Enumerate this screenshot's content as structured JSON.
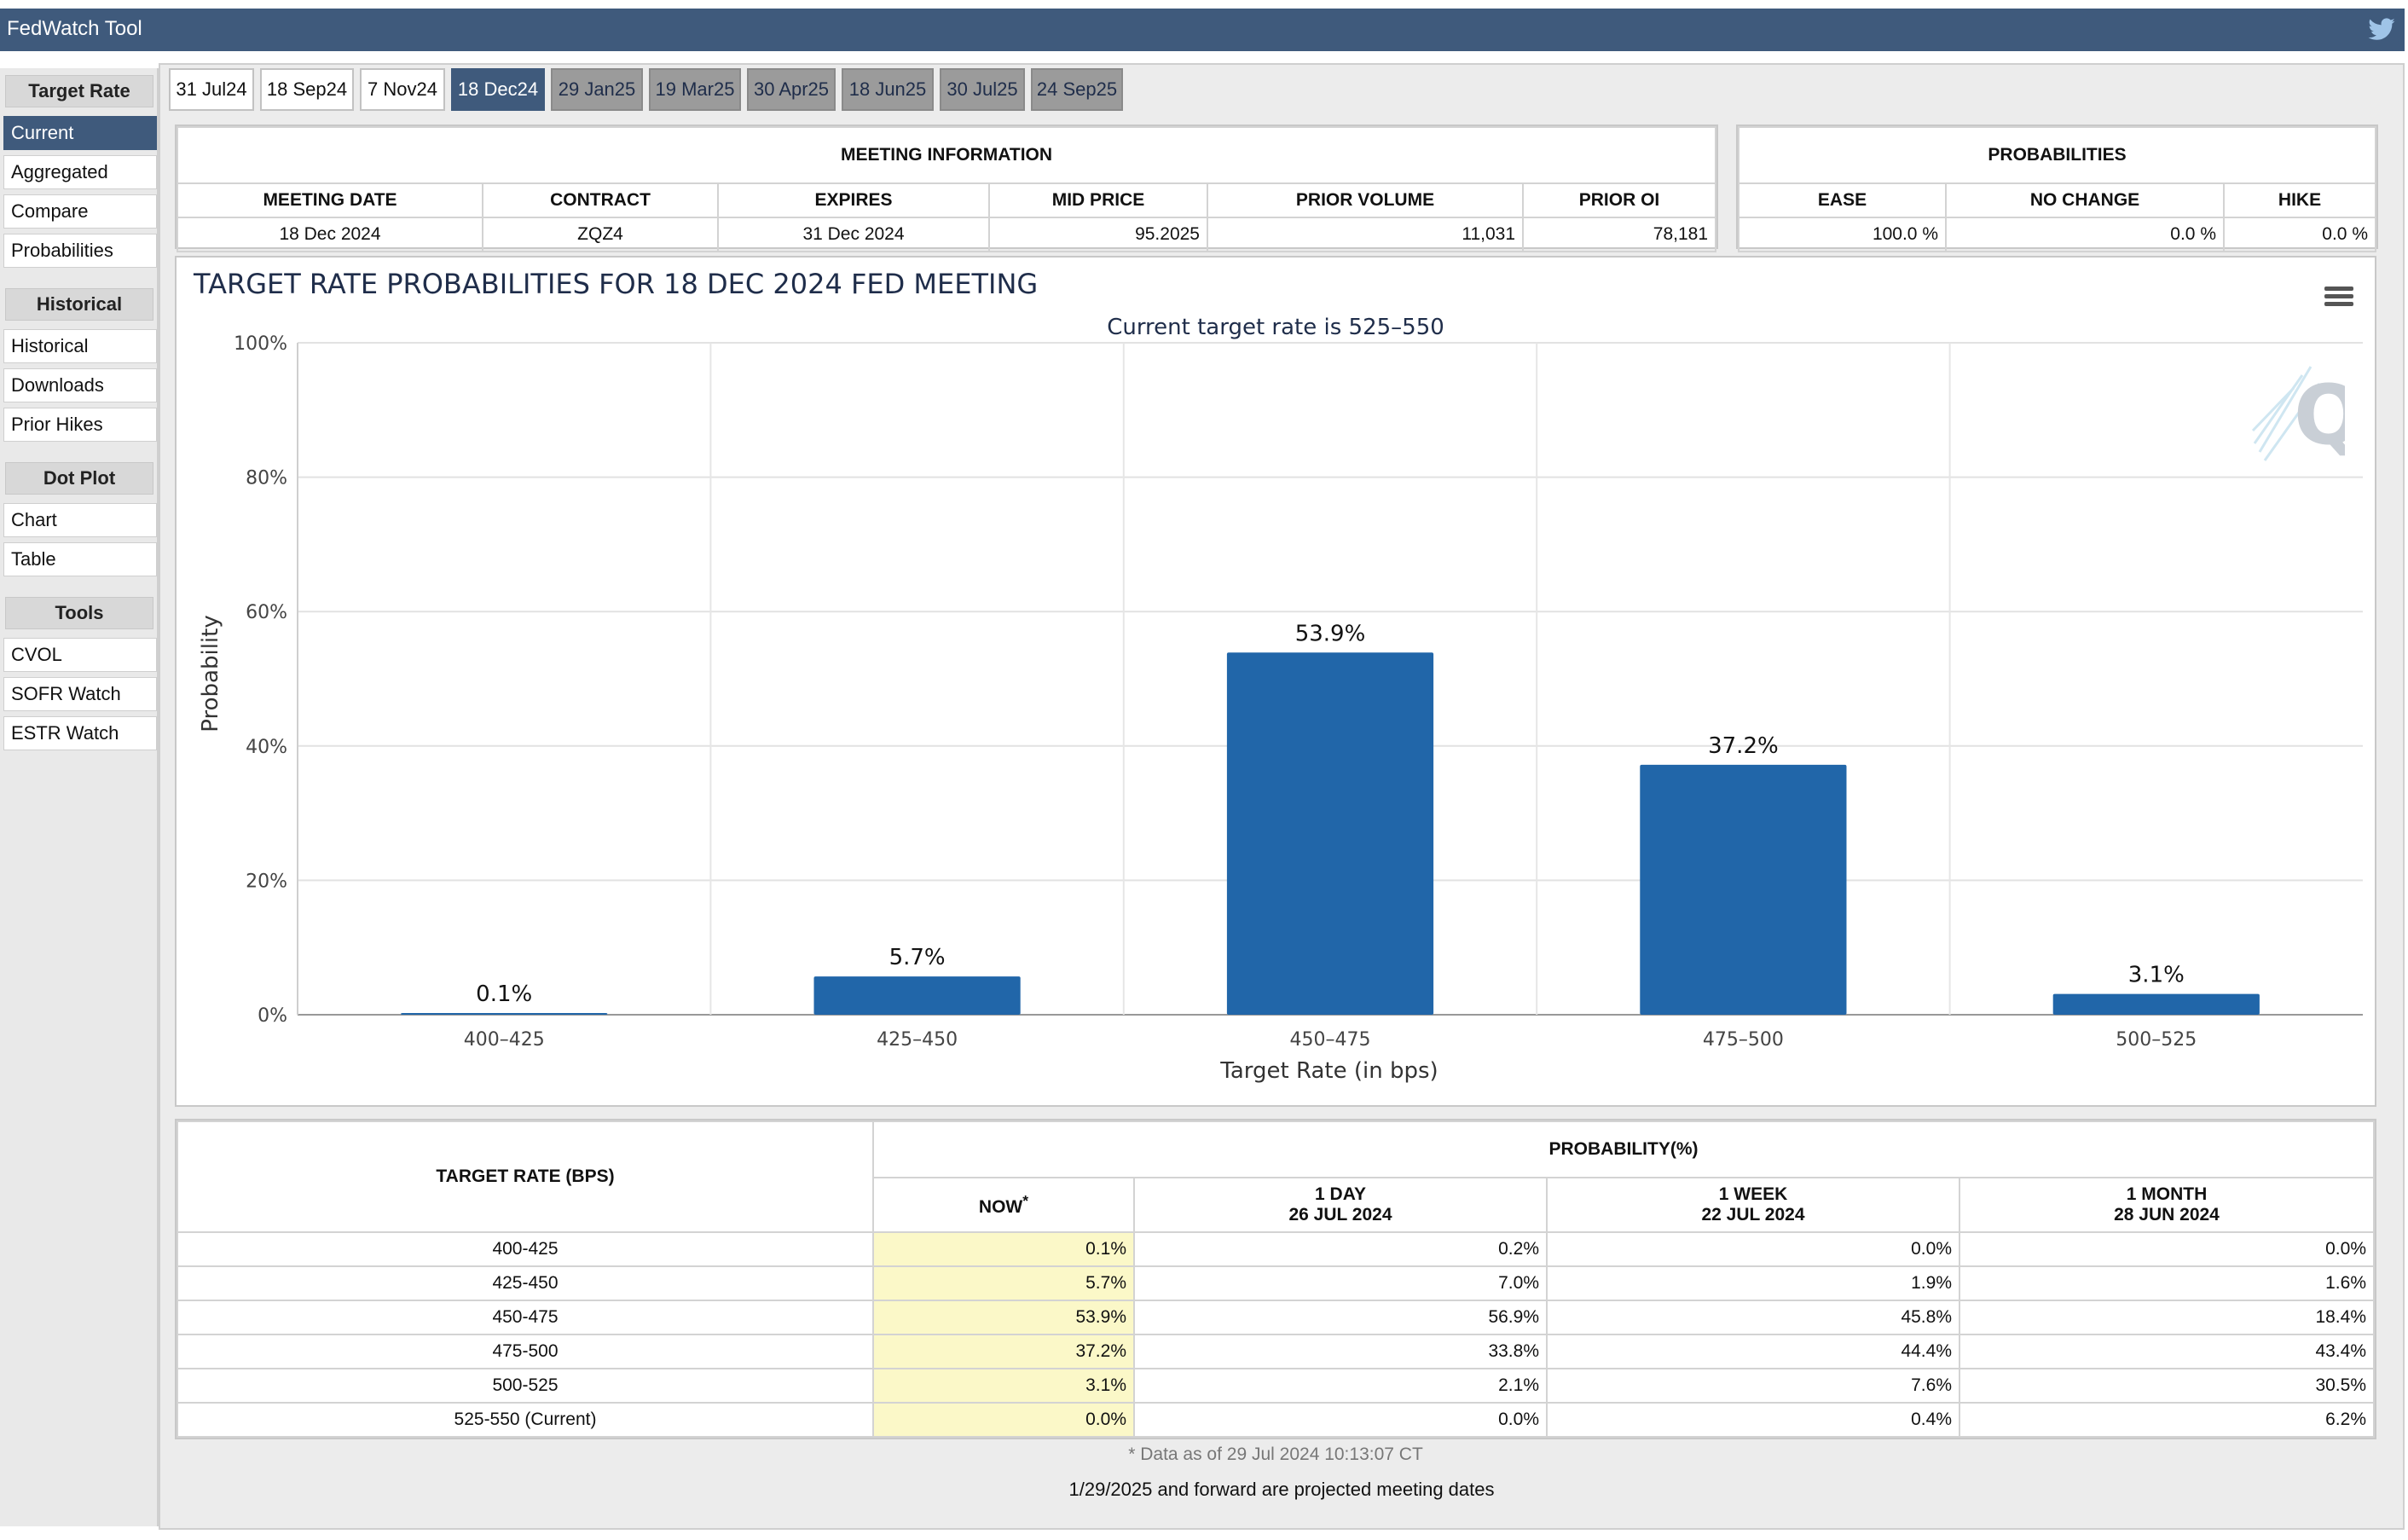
{
  "app": {
    "title": "FedWatch Tool"
  },
  "sidebar": {
    "sections": [
      {
        "header": "Target Rate",
        "items": [
          "Current",
          "Aggregated",
          "Compare",
          "Probabilities"
        ]
      },
      {
        "header": "Historical",
        "items": [
          "Historical",
          "Downloads",
          "Prior Hikes"
        ]
      },
      {
        "header": "Dot Plot",
        "items": [
          "Chart",
          "Table"
        ]
      },
      {
        "header": "Tools",
        "items": [
          "CVOL",
          "SOFR Watch",
          "ESTR Watch"
        ]
      }
    ],
    "active_item": "Current"
  },
  "tabs": [
    {
      "label": "31 Jul24",
      "state": "normal"
    },
    {
      "label": "18 Sep24",
      "state": "normal"
    },
    {
      "label": "7 Nov24",
      "state": "normal"
    },
    {
      "label": "18 Dec24",
      "state": "active"
    },
    {
      "label": "29 Jan25",
      "state": "future"
    },
    {
      "label": "19 Mar25",
      "state": "future"
    },
    {
      "label": "30 Apr25",
      "state": "future"
    },
    {
      "label": "18 Jun25",
      "state": "future"
    },
    {
      "label": "30 Jul25",
      "state": "future"
    },
    {
      "label": "24 Sep25",
      "state": "future"
    }
  ],
  "meeting_info": {
    "title": "MEETING INFORMATION",
    "headers": [
      "MEETING DATE",
      "CONTRACT",
      "EXPIRES",
      "MID PRICE",
      "PRIOR VOLUME",
      "PRIOR OI"
    ],
    "values": [
      "18 Dec 2024",
      "ZQZ4",
      "31 Dec 2024",
      "95.2025",
      "11,031",
      "78,181"
    ]
  },
  "probabilities": {
    "title": "PROBABILITIES",
    "headers": [
      "EASE",
      "NO CHANGE",
      "HIKE"
    ],
    "values": [
      "100.0 %",
      "0.0 %",
      "0.0 %"
    ]
  },
  "chart_data": {
    "type": "bar",
    "title": "TARGET RATE PROBABILITIES FOR 18 DEC 2024 FED MEETING",
    "subtitle": "Current target rate is 525–550",
    "xlabel": "Target Rate (in bps)",
    "ylabel": "Probability",
    "categories": [
      "400–425",
      "425–450",
      "450–475",
      "475–500",
      "500–525"
    ],
    "values": [
      0.1,
      5.7,
      53.9,
      37.2,
      3.1
    ],
    "data_labels": [
      "0.1%",
      "5.7%",
      "53.9%",
      "37.2%",
      "3.1%"
    ],
    "ylim": [
      0,
      100
    ],
    "yticks": [
      0,
      20,
      40,
      60,
      80,
      100
    ],
    "ytick_labels": [
      "0%",
      "20%",
      "40%",
      "60%",
      "80%",
      "100%"
    ],
    "bar_color": "#2166a9",
    "grid": true
  },
  "prob_table": {
    "rate_header": "TARGET RATE (BPS)",
    "prob_header": "PROBABILITY(%)",
    "columns": [
      {
        "line1": "NOW",
        "marker": "*",
        "line2": ""
      },
      {
        "line1": "1 DAY",
        "line2": "26 JUL 2024"
      },
      {
        "line1": "1 WEEK",
        "line2": "22 JUL 2024"
      },
      {
        "line1": "1 MONTH",
        "line2": "28 JUN 2024"
      }
    ],
    "rows": [
      {
        "rate": "400-425",
        "values": [
          "0.1%",
          "0.2%",
          "0.0%",
          "0.0%"
        ]
      },
      {
        "rate": "425-450",
        "values": [
          "5.7%",
          "7.0%",
          "1.9%",
          "1.6%"
        ]
      },
      {
        "rate": "450-475",
        "values": [
          "53.9%",
          "56.9%",
          "45.8%",
          "18.4%"
        ]
      },
      {
        "rate": "475-500",
        "values": [
          "37.2%",
          "33.8%",
          "44.4%",
          "43.4%"
        ]
      },
      {
        "rate": "500-525",
        "values": [
          "3.1%",
          "2.1%",
          "7.6%",
          "30.5%"
        ]
      },
      {
        "rate": "525-550 (Current)",
        "values": [
          "0.0%",
          "0.0%",
          "0.4%",
          "6.2%"
        ]
      }
    ],
    "footnote": "* Data as of 29 Jul 2024 10:13:07 CT"
  },
  "projected_note": "1/29/2025 and forward are projected meeting dates",
  "icons": {
    "twitter": "twitter-icon",
    "menu": "hamburger-menu-icon",
    "logo": "q-logo"
  }
}
